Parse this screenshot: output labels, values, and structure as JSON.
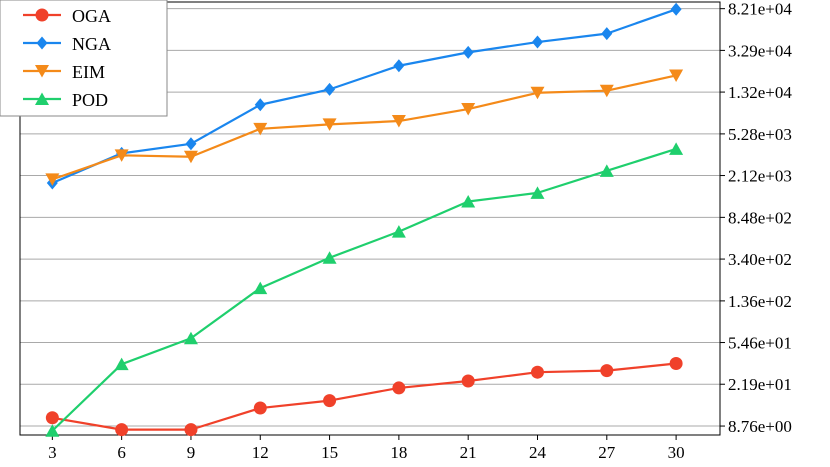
{
  "chart_data": {
    "type": "line",
    "title": "",
    "xlabel": "",
    "ylabel": "",
    "x": [
      3,
      6,
      9,
      12,
      15,
      18,
      21,
      24,
      27,
      30
    ],
    "xticks": [
      "3",
      "6",
      "9",
      "12",
      "15",
      "18",
      "21",
      "24",
      "27",
      "30"
    ],
    "y_scale": "log",
    "y_axis_side": "right",
    "ylim": [
      7.2,
      95000
    ],
    "yticks": [
      8.76,
      21.9,
      54.6,
      136,
      340,
      848,
      2120,
      5280,
      13200,
      32900,
      82100
    ],
    "yticklabels": [
      "8.76e+00",
      "2.19e+01",
      "5.46e+01",
      "1.36e+02",
      "3.40e+02",
      "8.48e+02",
      "2.12e+03",
      "5.28e+03",
      "1.32e+04",
      "3.29e+04",
      "8.21e+04"
    ],
    "grid": "horizontal",
    "legend_position": "top-left",
    "series": [
      {
        "name": "OGA",
        "color": "#f0412a",
        "marker": "circle",
        "values": [
          10.5,
          8.1,
          8.1,
          13.0,
          15.3,
          20.2,
          23.5,
          28.5,
          29.5,
          34.5
        ]
      },
      {
        "name": "NGA",
        "color": "#1a86ee",
        "marker": "diamond",
        "values": [
          1800,
          3450,
          4250,
          10000,
          14000,
          23500,
          31500,
          39500,
          47500,
          81000
        ]
      },
      {
        "name": "EIM",
        "color": "#f48a19",
        "marker": "triangle-down",
        "values": [
          1950,
          3300,
          3200,
          5900,
          6500,
          7000,
          9100,
          13000,
          13600,
          19000
        ]
      },
      {
        "name": "POD",
        "color": "#1fcf6d",
        "marker": "triangle-up",
        "values": [
          7.9,
          34,
          60,
          180,
          350,
          620,
          1200,
          1450,
          2350,
          3800
        ]
      }
    ]
  }
}
